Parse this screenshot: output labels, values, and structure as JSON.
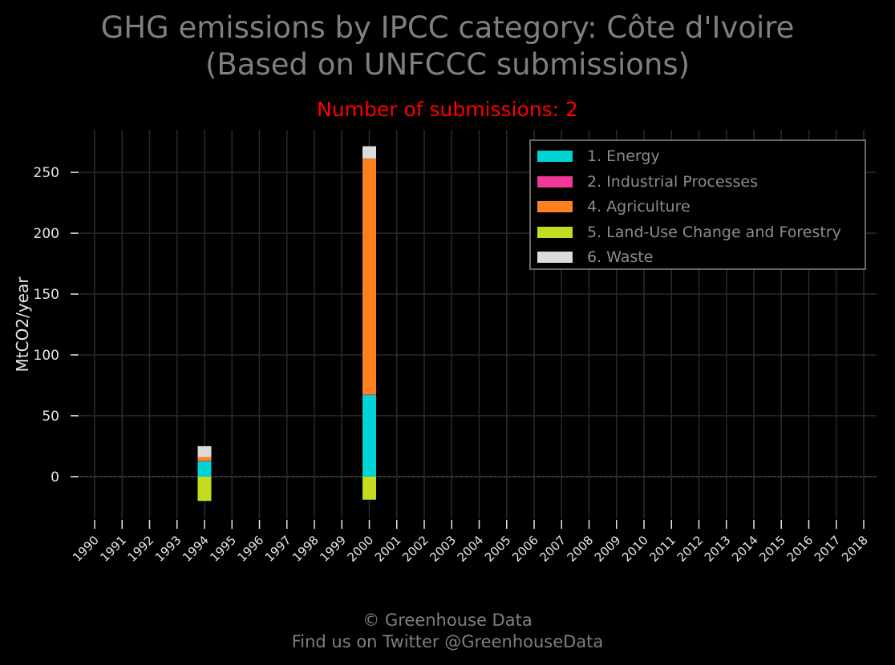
{
  "header": {
    "title_line1": "GHG emissions by IPCC category: Côte d'Ivoire",
    "title_line2": "(Based on UNFCCC submissions)",
    "subtitle": "Number of submissions: 2"
  },
  "footer": {
    "line1": "© Greenhouse Data",
    "line2": "Find us on Twitter @GreenhouseData"
  },
  "colors": {
    "background": "#000000",
    "grid": "#2a2a2a",
    "axis_text": "#e6e6e6",
    "title_text": "#7f7f7f",
    "subtitle_text": "#ff0000"
  },
  "chart_data": {
    "type": "bar",
    "stacked": true,
    "title": "GHG emissions by IPCC category: Côte d'Ivoire (Based on UNFCCC submissions)",
    "subtitle": "Number of submissions: 2",
    "xlabel": "",
    "ylabel": "MtCO2/year",
    "ylim": [
      -35,
      285
    ],
    "yticks": [
      0,
      50,
      100,
      150,
      200,
      250
    ],
    "grid": true,
    "legend_position": "top-right",
    "categories": [
      "1990",
      "1991",
      "1992",
      "1993",
      "1994",
      "1995",
      "1996",
      "1997",
      "1998",
      "1999",
      "2000",
      "2001",
      "2002",
      "2003",
      "2004",
      "2005",
      "2006",
      "2007",
      "2008",
      "2009",
      "2010",
      "2011",
      "2012",
      "2013",
      "2014",
      "2015",
      "2016",
      "2017",
      "2018"
    ],
    "series": [
      {
        "name": "1. Energy",
        "color": "#00d4d4",
        "values": [
          null,
          null,
          null,
          null,
          12.5,
          null,
          null,
          null,
          null,
          null,
          67,
          null,
          null,
          null,
          null,
          null,
          null,
          null,
          null,
          null,
          null,
          null,
          null,
          null,
          null,
          null,
          null,
          null,
          null
        ]
      },
      {
        "name": "2. Industrial Processes",
        "color": "#f0389a",
        "values": [
          null,
          null,
          null,
          null,
          0.5,
          null,
          null,
          null,
          null,
          null,
          0.5,
          null,
          null,
          null,
          null,
          null,
          null,
          null,
          null,
          null,
          null,
          null,
          null,
          null,
          null,
          null,
          null,
          null,
          null
        ]
      },
      {
        "name": "4. Agriculture",
        "color": "#ff8020",
        "values": [
          null,
          null,
          null,
          null,
          3,
          null,
          null,
          null,
          null,
          null,
          194,
          null,
          null,
          null,
          null,
          null,
          null,
          null,
          null,
          null,
          null,
          null,
          null,
          null,
          null,
          null,
          null,
          null,
          null
        ]
      },
      {
        "name": "5. Land-Use Change and Forestry",
        "color": "#c4dc20",
        "values": [
          null,
          null,
          null,
          null,
          -20,
          null,
          null,
          null,
          null,
          null,
          -19,
          null,
          null,
          null,
          null,
          null,
          null,
          null,
          null,
          null,
          null,
          null,
          null,
          null,
          null,
          null,
          null,
          null,
          null
        ]
      },
      {
        "name": "6. Waste",
        "color": "#dcdcdc",
        "values": [
          null,
          null,
          null,
          null,
          9,
          null,
          null,
          null,
          null,
          null,
          10,
          null,
          null,
          null,
          null,
          null,
          null,
          null,
          null,
          null,
          null,
          null,
          null,
          null,
          null,
          null,
          null,
          null,
          null
        ]
      }
    ]
  }
}
